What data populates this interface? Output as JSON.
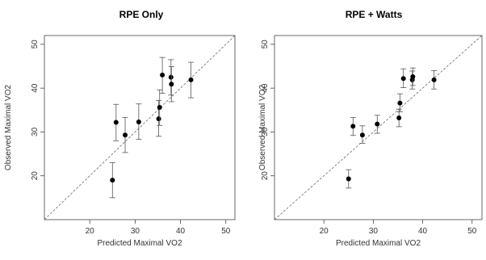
{
  "chart_data": [
    {
      "type": "scatter",
      "title": "RPE Only",
      "xlabel": "Predicted Maximal VO2",
      "ylabel": "Observed Maximal VO2",
      "xlim": [
        10,
        52
      ],
      "ylim": [
        10,
        52
      ],
      "xticks": [
        20,
        30,
        40,
        50
      ],
      "yticks": [
        20,
        30,
        40,
        50
      ],
      "reference_line": "y = x (dashed)",
      "points": [
        {
          "x": 25.0,
          "y": 19.0,
          "low": 15.0,
          "high": 23.0
        },
        {
          "x": 25.8,
          "y": 32.2,
          "low": 28.0,
          "high": 36.3
        },
        {
          "x": 27.8,
          "y": 29.3,
          "low": 25.3,
          "high": 33.3
        },
        {
          "x": 30.8,
          "y": 32.3,
          "low": 28.3,
          "high": 36.4
        },
        {
          "x": 35.2,
          "y": 33.0,
          "low": 29.0,
          "high": 37.2
        },
        {
          "x": 35.4,
          "y": 35.6,
          "low": 31.5,
          "high": 39.6
        },
        {
          "x": 36.0,
          "y": 43.0,
          "low": 38.8,
          "high": 47.0
        },
        {
          "x": 37.9,
          "y": 42.5,
          "low": 38.4,
          "high": 46.5
        },
        {
          "x": 38.0,
          "y": 40.9,
          "low": 36.9,
          "high": 44.9
        },
        {
          "x": 42.3,
          "y": 41.9,
          "low": 37.8,
          "high": 45.9
        }
      ]
    },
    {
      "type": "scatter",
      "title": "RPE + Watts",
      "xlabel": "Predicted Maximal VO2",
      "ylabel": "Observed Maximal VO2",
      "xlim": [
        10,
        52
      ],
      "ylim": [
        10,
        52
      ],
      "xticks": [
        20,
        30,
        40,
        50
      ],
      "yticks": [
        20,
        30,
        40,
        50
      ],
      "reference_line": "y = x (dashed)",
      "points": [
        {
          "x": 25.0,
          "y": 19.3,
          "low": 17.2,
          "high": 21.4
        },
        {
          "x": 25.9,
          "y": 31.3,
          "low": 29.2,
          "high": 33.3
        },
        {
          "x": 27.8,
          "y": 29.3,
          "low": 27.4,
          "high": 31.4
        },
        {
          "x": 30.8,
          "y": 31.8,
          "low": 29.7,
          "high": 33.8
        },
        {
          "x": 35.2,
          "y": 33.2,
          "low": 31.2,
          "high": 35.2
        },
        {
          "x": 35.4,
          "y": 36.6,
          "low": 34.6,
          "high": 38.7
        },
        {
          "x": 36.1,
          "y": 42.2,
          "low": 40.1,
          "high": 44.4
        },
        {
          "x": 37.9,
          "y": 41.9,
          "low": 39.8,
          "high": 43.9
        },
        {
          "x": 38.0,
          "y": 42.6,
          "low": 40.6,
          "high": 44.6
        },
        {
          "x": 42.3,
          "y": 41.9,
          "low": 39.8,
          "high": 44.0
        }
      ]
    }
  ]
}
